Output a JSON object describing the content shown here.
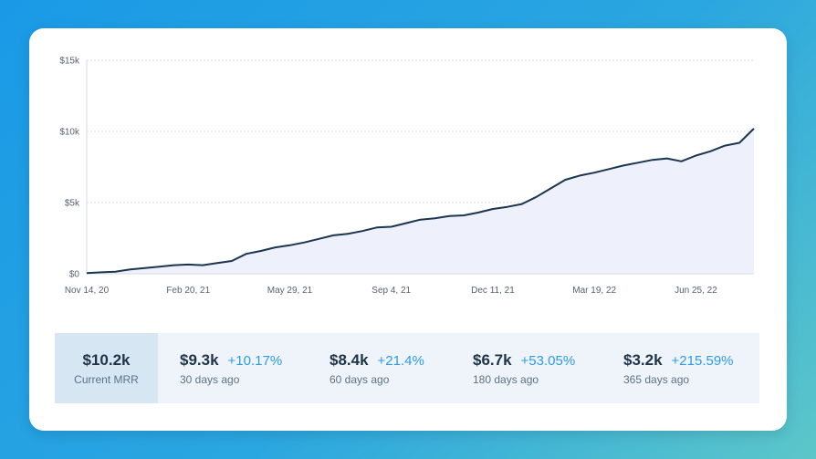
{
  "chart_data": {
    "type": "area",
    "x": [
      "Nov 14, 20",
      "Nov 28, 20",
      "Dec 12, 20",
      "Dec 26, 20",
      "Jan 9, 21",
      "Jan 23, 21",
      "Feb 6, 21",
      "Feb 20, 21",
      "Mar 6, 21",
      "Mar 20, 21",
      "Apr 3, 21",
      "Apr 17, 21",
      "May 1, 21",
      "May 15, 21",
      "May 29, 21",
      "Jun 12, 21",
      "Jun 26, 21",
      "Jul 10, 21",
      "Jul 24, 21",
      "Aug 7, 21",
      "Aug 21, 21",
      "Sep 4, 21",
      "Sep 18, 21",
      "Oct 2, 21",
      "Oct 16, 21",
      "Oct 30, 21",
      "Nov 13, 21",
      "Nov 27, 21",
      "Dec 11, 21",
      "Dec 25, 21",
      "Jan 8, 22",
      "Jan 22, 22",
      "Feb 5, 22",
      "Feb 19, 22",
      "Mar 5, 22",
      "Mar 19, 22",
      "Apr 2, 22",
      "Apr 16, 22",
      "Apr 30, 22",
      "May 14, 22",
      "May 28, 22",
      "Jun 11, 22",
      "Jun 25, 22",
      "Jul 9, 22",
      "Jul 23, 22",
      "Aug 6, 22",
      "Aug 20, 22"
    ],
    "series": [
      {
        "values": [
          50,
          100,
          150,
          300,
          400,
          500,
          600,
          650,
          600,
          750,
          900,
          1400,
          1600,
          1850,
          2000,
          2200,
          2450,
          2700,
          2800,
          3000,
          3250,
          3300,
          3550,
          3800,
          3900,
          4050,
          4100,
          4300,
          4550,
          4700,
          4900,
          5400,
          6000,
          6600,
          6900,
          7100,
          7350,
          7600,
          7800,
          8000,
          8100,
          7900,
          8300,
          8600,
          9000,
          9200,
          10200
        ]
      }
    ],
    "ylim": [
      0,
      15000
    ],
    "y_ticks": [
      "$15k",
      "$10k",
      "$5k",
      "$0"
    ],
    "x_ticks": [
      "Nov 14, 20",
      "Feb 20, 21",
      "May 29, 21",
      "Sep 4, 21",
      "Dec 11, 21",
      "Mar 19, 22",
      "Jun 25, 22"
    ],
    "grid": true,
    "colors": {
      "line": "#1b3550",
      "fill": "#eef0fb",
      "grid": "#d7dde3"
    }
  },
  "summary": {
    "current": {
      "value": "$10.2k",
      "label": "Current MRR"
    },
    "items": [
      {
        "value": "$9.3k",
        "change": "+10.17%",
        "label": "30 days ago"
      },
      {
        "value": "$8.4k",
        "change": "+21.4%",
        "label": "60 days ago"
      },
      {
        "value": "$6.7k",
        "change": "+53.05%",
        "label": "180 days ago"
      },
      {
        "value": "$3.2k",
        "change": "+215.59%",
        "label": "365 days ago"
      }
    ]
  }
}
